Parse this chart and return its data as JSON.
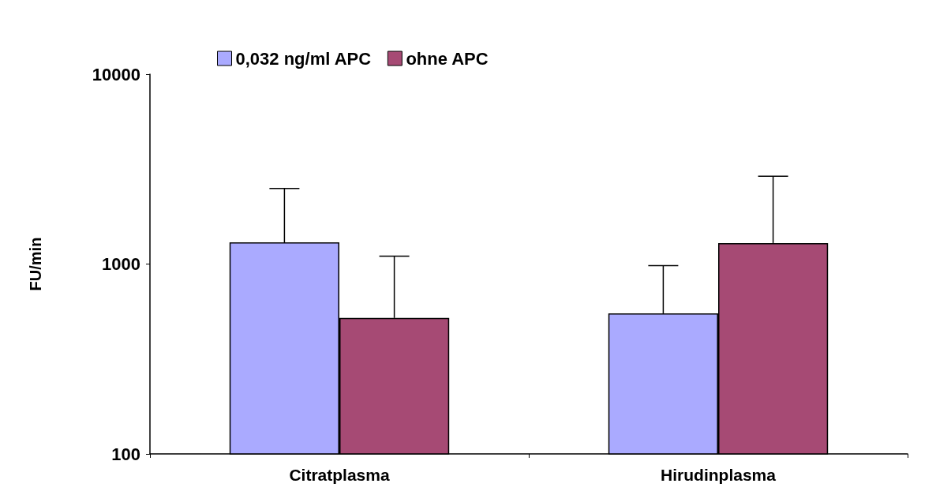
{
  "chart_data": {
    "type": "bar",
    "ylabel": "FU/min",
    "categories": [
      "Citratplasma",
      "Hirudinplasma"
    ],
    "series": [
      {
        "name": "0,032 ng/ml APC",
        "color": "#aaaaff",
        "values": [
          1300,
          550
        ],
        "errors": [
          [
            1300,
            2500
          ],
          [
            550,
            980
          ]
        ]
      },
      {
        "name": "ohne APC",
        "color": "#a64a74",
        "values": [
          520,
          1290
        ],
        "errors": [
          [
            520,
            1100
          ],
          [
            1290,
            2900
          ]
        ]
      }
    ],
    "log": "y",
    "ylim": [
      100,
      10000
    ],
    "yticks": [
      100,
      1000,
      10000
    ],
    "grid": false,
    "legend": "top"
  }
}
